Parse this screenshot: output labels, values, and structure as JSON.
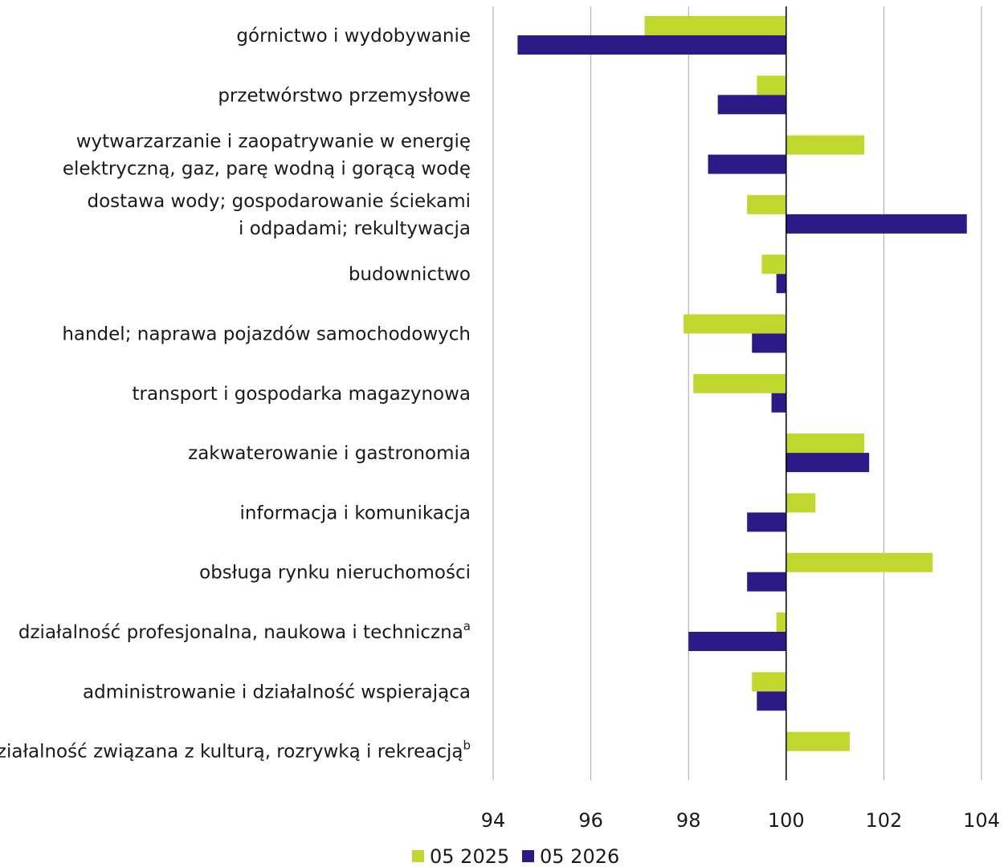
{
  "chart_data": {
    "type": "bar",
    "orientation": "horizontal",
    "title": "",
    "xlabel": "",
    "ylabel": "",
    "xlim": [
      94,
      104
    ],
    "x_ticks": [
      94,
      96,
      98,
      100,
      102,
      104
    ],
    "baseline": 100,
    "grid": "vertical",
    "legend_position": "bottom",
    "categories": [
      {
        "lines": [
          "górnictwo i wydobywanie"
        ],
        "sup": ""
      },
      {
        "lines": [
          "przetwórstwo przemysłowe"
        ],
        "sup": ""
      },
      {
        "lines": [
          "wytwarzarzanie  i zaopatrywanie w energię",
          "elektryczną, gaz, parę wodną i gorącą wodę"
        ],
        "sup": ""
      },
      {
        "lines": [
          "dostawa wody; gospodarowanie ściekami",
          "i odpadami; rekultywacja"
        ],
        "sup": ""
      },
      {
        "lines": [
          "budownictwo"
        ],
        "sup": ""
      },
      {
        "lines": [
          "handel; naprawa pojazdów samochodowych"
        ],
        "sup": ""
      },
      {
        "lines": [
          "transport i gospodarka magazynowa"
        ],
        "sup": ""
      },
      {
        "lines": [
          "zakwaterowanie i gastronomia"
        ],
        "sup": ""
      },
      {
        "lines": [
          "informacja i komunikacja"
        ],
        "sup": ""
      },
      {
        "lines": [
          "obsługa rynku nieruchomości"
        ],
        "sup": ""
      },
      {
        "lines": [
          "działalność profesjonalna, naukowa i techniczna"
        ],
        "sup": "a"
      },
      {
        "lines": [
          "administrowanie i działalność wspierająca"
        ],
        "sup": ""
      },
      {
        "lines": [
          "działalność związana z kulturą, rozrywką i rekreacją"
        ],
        "sup": "b"
      }
    ],
    "series": [
      {
        "name": "05 2025",
        "color": "#c1d72e",
        "values": [
          97.1,
          99.4,
          101.6,
          99.2,
          99.5,
          97.9,
          98.1,
          101.6,
          100.6,
          103.0,
          99.8,
          99.3,
          101.3
        ]
      },
      {
        "name": "05 2026",
        "color": "#2e1a87",
        "values": [
          94.5,
          98.6,
          98.4,
          103.7,
          99.8,
          99.3,
          99.7,
          101.7,
          99.2,
          99.2,
          98.0,
          99.4,
          100.0
        ]
      }
    ]
  }
}
